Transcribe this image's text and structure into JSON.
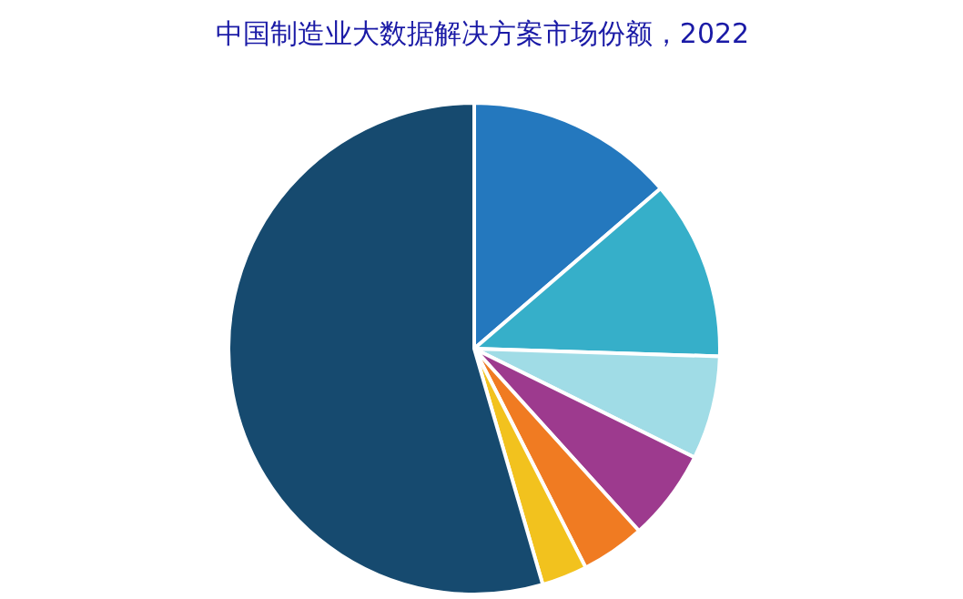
{
  "chart_data": {
    "type": "pie",
    "title": "中国制造业大数据解决方案市场份额，2022",
    "categories": [
      null,
      null,
      null,
      null,
      null,
      null,
      null
    ],
    "values": [
      13.7,
      11.8,
      6.8,
      6.0,
      4.2,
      3.0,
      54.5
    ],
    "colors": [
      "#2478be",
      "#36afc9",
      "#a0dce6",
      "#9d3a8e",
      "#f07b22",
      "#f2c21e",
      "#164a6f"
    ]
  }
}
